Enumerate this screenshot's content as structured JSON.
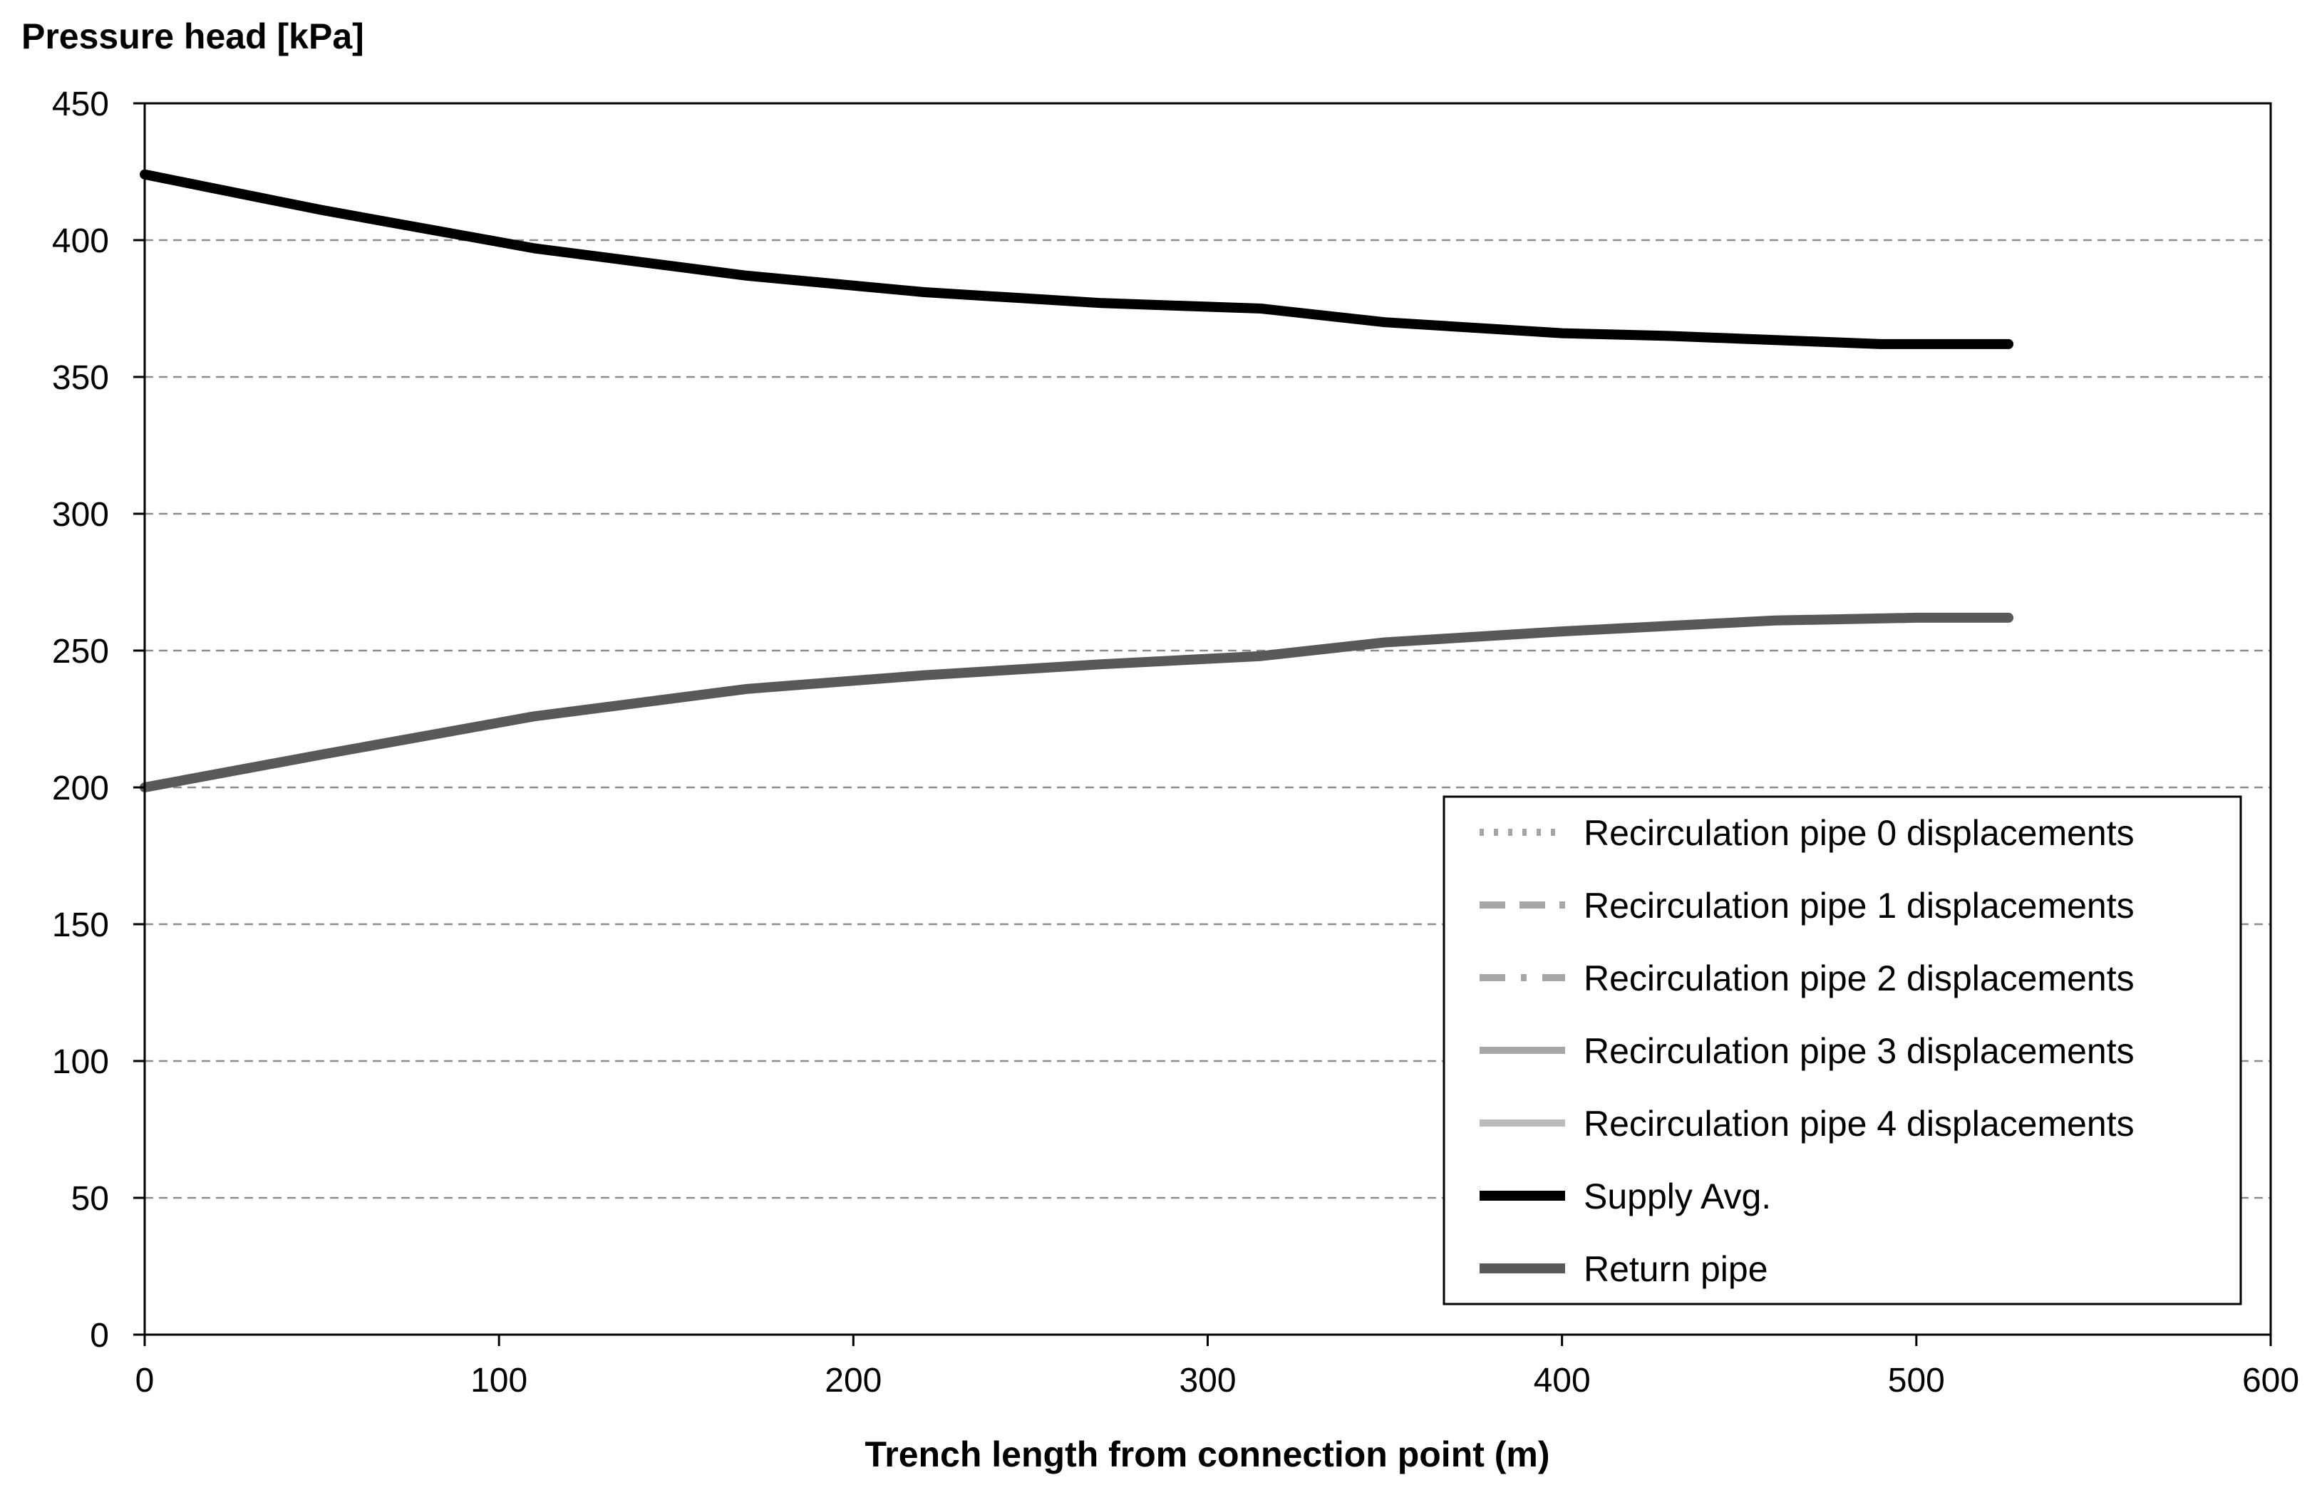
{
  "chart_data": {
    "type": "line",
    "title": "",
    "ylabel": "Pressure head [kPa]",
    "xlabel": "Trench length from connection point (m)",
    "xlim": [
      0,
      600
    ],
    "ylim": [
      0,
      450
    ],
    "x_ticks": [
      0,
      100,
      200,
      300,
      400,
      500,
      600
    ],
    "y_ticks": [
      0,
      50,
      100,
      150,
      200,
      250,
      300,
      350,
      400,
      450
    ],
    "grid": "horizontal dashed",
    "legend_position": "bottom-right",
    "series": [
      {
        "name": "Recirculation pipe 0 displacements",
        "style": "dotted",
        "color": "#a6a6a6",
        "x": [],
        "y": []
      },
      {
        "name": "Recirculation pipe 1 displacements",
        "style": "dashed",
        "color": "#a6a6a6",
        "x": [],
        "y": []
      },
      {
        "name": "Recirculation pipe 2 displacements",
        "style": "dash-dot",
        "color": "#a6a6a6",
        "x": [],
        "y": []
      },
      {
        "name": "Recirculation pipe 3 displacements",
        "style": "solid",
        "color": "#a6a6a6",
        "x": [],
        "y": []
      },
      {
        "name": "Recirculation pipe 4 displacements",
        "style": "solid",
        "color": "#bcbcbc",
        "x": [],
        "y": []
      },
      {
        "name": "Supply Avg.",
        "style": "solid",
        "color": "#000000",
        "x": [
          0,
          50,
          110,
          170,
          220,
          270,
          315,
          350,
          400,
          430,
          450,
          490,
          526
        ],
        "y": [
          424,
          411,
          397,
          387,
          381,
          377,
          375,
          370,
          366,
          365,
          364,
          362,
          362
        ]
      },
      {
        "name": "Return pipe",
        "style": "solid",
        "color": "#595959",
        "x": [
          0,
          50,
          110,
          170,
          220,
          270,
          315,
          350,
          400,
          430,
          460,
          500,
          526
        ],
        "y": [
          200,
          212,
          226,
          236,
          241,
          245,
          248,
          253,
          257,
          259,
          261,
          262,
          262
        ]
      }
    ]
  }
}
